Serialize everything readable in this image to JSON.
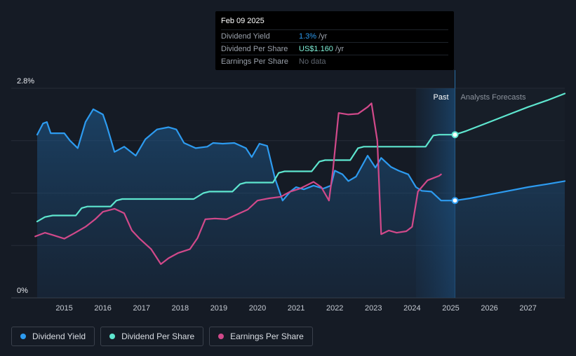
{
  "tooltip": {
    "date": "Feb 09 2025",
    "rows": [
      {
        "label": "Dividend Yield",
        "value": "1.3%",
        "unit": "/yr",
        "color": "#2d9bf0"
      },
      {
        "label": "Dividend Per Share",
        "value": "US$1.160",
        "unit": "/yr",
        "color": "#7ff0d8"
      },
      {
        "label": "Earnings Per Share",
        "value": "No data",
        "unit": "",
        "color": "#5f6670"
      }
    ]
  },
  "legend": [
    {
      "label": "Dividend Yield",
      "color": "#2d9bf0"
    },
    {
      "label": "Dividend Per Share",
      "color": "#5ee6cf"
    },
    {
      "label": "Earnings Per Share",
      "color": "#d1498a"
    }
  ],
  "chart_data": {
    "type": "line",
    "y_tick_labels": [
      "2.8%",
      "0%"
    ],
    "ylim": [
      0,
      2.8
    ],
    "xlim": [
      2014.3,
      2027.95
    ],
    "x_tick_labels": [
      "2015",
      "2016",
      "2017",
      "2018",
      "2019",
      "2020",
      "2021",
      "2022",
      "2023",
      "2024",
      "2025",
      "2026",
      "2027"
    ],
    "past_label": "Past",
    "forecast_label": "Analysts Forecasts",
    "past_region": [
      2024.1,
      2025.11
    ],
    "grid": true,
    "series": [
      {
        "name": "Dividend Yield",
        "color": "#2d9bf0",
        "points": [
          [
            2014.3,
            2.18
          ],
          [
            2014.45,
            2.33
          ],
          [
            2014.55,
            2.35
          ],
          [
            2014.65,
            2.2
          ],
          [
            2014.85,
            2.2
          ],
          [
            2015.0,
            2.2
          ],
          [
            2015.15,
            2.1
          ],
          [
            2015.35,
            2.0
          ],
          [
            2015.55,
            2.35
          ],
          [
            2015.75,
            2.52
          ],
          [
            2016.0,
            2.45
          ],
          [
            2016.1,
            2.3
          ],
          [
            2016.3,
            1.95
          ],
          [
            2016.55,
            2.02
          ],
          [
            2016.85,
            1.9
          ],
          [
            2017.1,
            2.12
          ],
          [
            2017.4,
            2.25
          ],
          [
            2017.7,
            2.28
          ],
          [
            2017.9,
            2.25
          ],
          [
            2018.1,
            2.07
          ],
          [
            2018.4,
            2.0
          ],
          [
            2018.7,
            2.02
          ],
          [
            2018.85,
            2.07
          ],
          [
            2019.1,
            2.06
          ],
          [
            2019.4,
            2.07
          ],
          [
            2019.7,
            2.0
          ],
          [
            2019.85,
            1.88
          ],
          [
            2020.05,
            2.06
          ],
          [
            2020.25,
            2.03
          ],
          [
            2020.45,
            1.6
          ],
          [
            2020.65,
            1.3
          ],
          [
            2020.85,
            1.42
          ],
          [
            2021.0,
            1.48
          ],
          [
            2021.2,
            1.45
          ],
          [
            2021.45,
            1.5
          ],
          [
            2021.7,
            1.46
          ],
          [
            2021.9,
            1.5
          ],
          [
            2022.0,
            1.7
          ],
          [
            2022.2,
            1.65
          ],
          [
            2022.35,
            1.56
          ],
          [
            2022.55,
            1.62
          ],
          [
            2022.85,
            1.9
          ],
          [
            2023.05,
            1.74
          ],
          [
            2023.2,
            1.87
          ],
          [
            2023.45,
            1.75
          ],
          [
            2023.65,
            1.7
          ],
          [
            2023.9,
            1.65
          ],
          [
            2024.1,
            1.48
          ],
          [
            2024.25,
            1.43
          ],
          [
            2024.5,
            1.42
          ],
          [
            2024.75,
            1.3
          ],
          [
            2025.11,
            1.3
          ],
          [
            2025.5,
            1.33
          ],
          [
            2026.0,
            1.38
          ],
          [
            2026.5,
            1.43
          ],
          [
            2027.0,
            1.48
          ],
          [
            2027.5,
            1.52
          ],
          [
            2027.95,
            1.56
          ]
        ]
      },
      {
        "name": "Dividend Per Share",
        "color": "#5ee6cf",
        "points": [
          [
            2014.3,
            1.02
          ],
          [
            2014.5,
            1.08
          ],
          [
            2014.7,
            1.1
          ],
          [
            2015.3,
            1.1
          ],
          [
            2015.45,
            1.2
          ],
          [
            2015.6,
            1.22
          ],
          [
            2016.2,
            1.22
          ],
          [
            2016.35,
            1.3
          ],
          [
            2016.5,
            1.32
          ],
          [
            2018.35,
            1.32
          ],
          [
            2018.6,
            1.4
          ],
          [
            2018.75,
            1.42
          ],
          [
            2019.35,
            1.42
          ],
          [
            2019.55,
            1.52
          ],
          [
            2019.7,
            1.54
          ],
          [
            2020.4,
            1.54
          ],
          [
            2020.55,
            1.67
          ],
          [
            2020.7,
            1.69
          ],
          [
            2021.4,
            1.69
          ],
          [
            2021.6,
            1.82
          ],
          [
            2021.75,
            1.84
          ],
          [
            2022.4,
            1.84
          ],
          [
            2022.6,
            2.0
          ],
          [
            2022.75,
            2.02
          ],
          [
            2024.35,
            2.02
          ],
          [
            2024.55,
            2.17
          ],
          [
            2024.7,
            2.18
          ],
          [
            2025.11,
            2.18
          ],
          [
            2025.4,
            2.23
          ],
          [
            2026.0,
            2.35
          ],
          [
            2026.5,
            2.45
          ],
          [
            2027.0,
            2.55
          ],
          [
            2027.5,
            2.64
          ],
          [
            2027.95,
            2.73
          ]
        ]
      },
      {
        "name": "Earnings Per Share",
        "color": "#d1498a",
        "points": [
          [
            2014.25,
            0.82
          ],
          [
            2014.5,
            0.87
          ],
          [
            2014.7,
            0.84
          ],
          [
            2015.0,
            0.79
          ],
          [
            2015.25,
            0.86
          ],
          [
            2015.55,
            0.95
          ],
          [
            2015.8,
            1.05
          ],
          [
            2016.0,
            1.15
          ],
          [
            2016.3,
            1.19
          ],
          [
            2016.55,
            1.13
          ],
          [
            2016.75,
            0.9
          ],
          [
            2016.95,
            0.79
          ],
          [
            2017.25,
            0.65
          ],
          [
            2017.5,
            0.45
          ],
          [
            2017.7,
            0.53
          ],
          [
            2017.95,
            0.6
          ],
          [
            2018.25,
            0.65
          ],
          [
            2018.45,
            0.8
          ],
          [
            2018.65,
            1.05
          ],
          [
            2018.9,
            1.06
          ],
          [
            2019.2,
            1.05
          ],
          [
            2019.45,
            1.11
          ],
          [
            2019.75,
            1.18
          ],
          [
            2020.0,
            1.3
          ],
          [
            2020.3,
            1.33
          ],
          [
            2020.6,
            1.35
          ],
          [
            2020.85,
            1.42
          ],
          [
            2021.1,
            1.46
          ],
          [
            2021.45,
            1.55
          ],
          [
            2021.65,
            1.48
          ],
          [
            2021.85,
            1.3
          ],
          [
            2021.95,
            1.7
          ],
          [
            2022.1,
            2.47
          ],
          [
            2022.35,
            2.45
          ],
          [
            2022.6,
            2.46
          ],
          [
            2022.85,
            2.55
          ],
          [
            2022.95,
            2.6
          ],
          [
            2023.1,
            2.1
          ],
          [
            2023.2,
            0.85
          ],
          [
            2023.4,
            0.9
          ],
          [
            2023.6,
            0.87
          ],
          [
            2023.85,
            0.89
          ],
          [
            2024.0,
            0.95
          ],
          [
            2024.15,
            1.42
          ],
          [
            2024.4,
            1.57
          ],
          [
            2024.7,
            1.63
          ],
          [
            2024.75,
            1.65
          ]
        ]
      }
    ],
    "markers": [
      {
        "series": "Dividend Per Share",
        "x": 2025.11,
        "y": 2.18
      },
      {
        "series": "Dividend Yield",
        "x": 2025.11,
        "y": 1.3
      }
    ]
  }
}
